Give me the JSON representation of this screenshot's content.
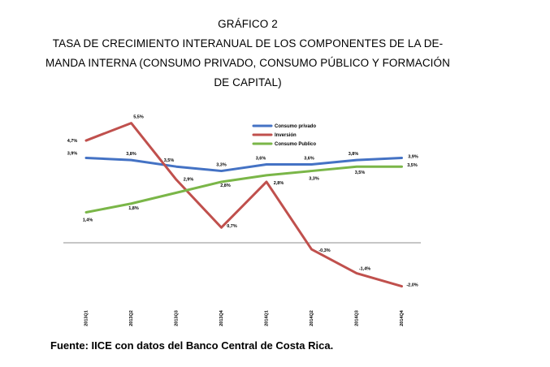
{
  "figure": {
    "number_label": "GRÁFICO 2",
    "title_lines": [
      "TASA DE CRECIMIENTO INTERANUAL DE LOS COMPONENTES DE LA DE-",
      "MANDA INTERNA (CONSUMO PRIVADO, CONSUMO PÚBLICO Y FORMACIÓN",
      "DE CAPITAL)"
    ],
    "source": "Fuente: IICE con datos del Banco Central de Costa Rica."
  },
  "chart_data": {
    "type": "line",
    "categories": [
      "2013Q1",
      "2013Q2",
      "2013Q3",
      "2013Q4",
      "2014Q1",
      "2014Q2",
      "2014Q3",
      "2014Q4"
    ],
    "series": [
      {
        "name": "Consumo privado",
        "color": "#4472c4",
        "values": [
          3.9,
          3.8,
          3.5,
          3.3,
          3.6,
          3.6,
          3.8,
          3.9
        ],
        "labels": [
          "3,9%",
          "3,8%",
          "3,5%",
          "3,3%",
          "3,6%",
          "3,6%",
          "3,8%",
          "3,9%"
        ]
      },
      {
        "name": "Inversión",
        "color": "#c0504d",
        "values": [
          4.7,
          5.5,
          2.9,
          0.7,
          2.8,
          -0.3,
          -1.4,
          -2.0
        ],
        "labels": [
          "4,7%",
          "5,5%",
          "2,9%",
          "0,7%",
          "2,8%",
          "-0,3%",
          "-1,4%",
          "-2,0%"
        ]
      },
      {
        "name": "Consumo Publico",
        "color": "#7ab648",
        "values": [
          1.4,
          1.8,
          2.3,
          2.8,
          3.1,
          3.3,
          3.5,
          3.5
        ],
        "labels": [
          "1,4%",
          "1,8%",
          "",
          "2,8%",
          "",
          "3,3%",
          "3,5%",
          "3,5%"
        ]
      }
    ],
    "ylim": [
      -2.5,
      6.0
    ],
    "legend": "top-right",
    "grid": false
  }
}
